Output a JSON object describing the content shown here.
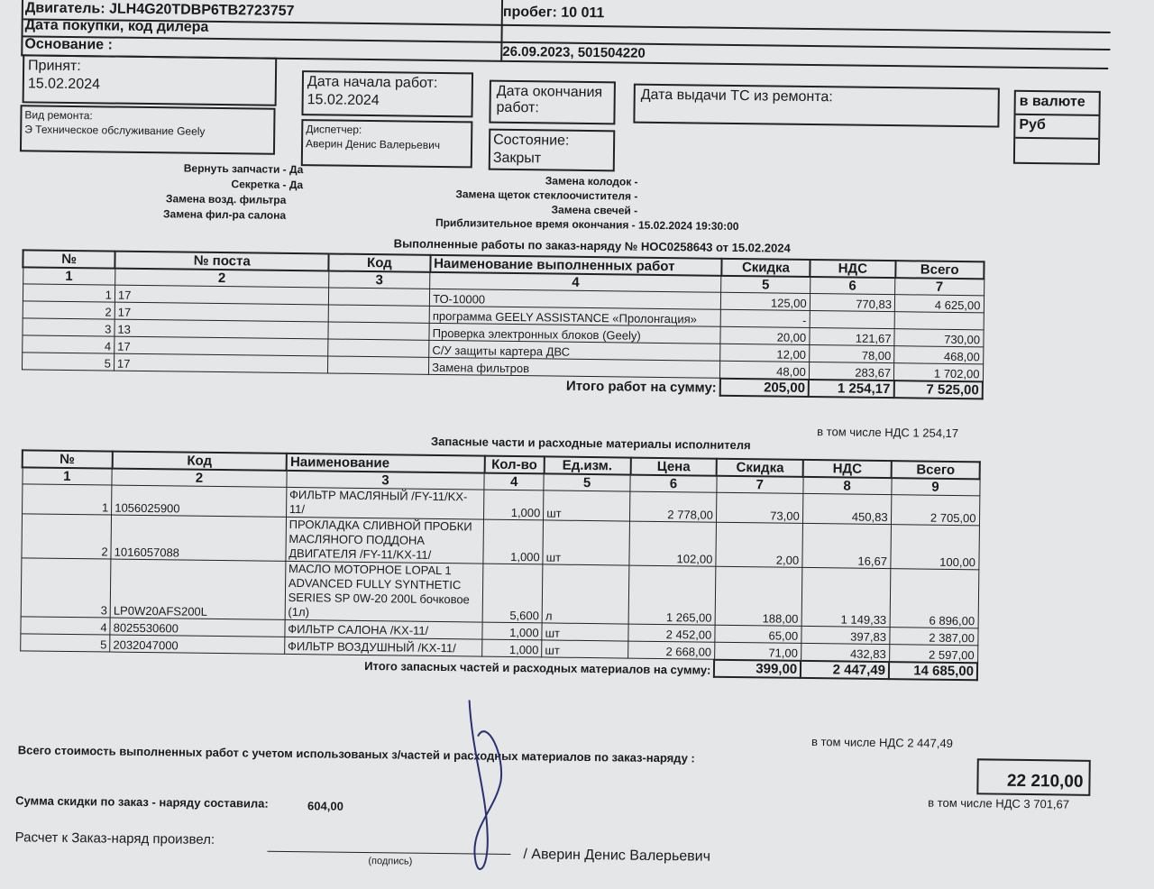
{
  "header": {
    "engine": "Двигатель: JLH4G20TDBP6TB2723757",
    "mileage": "пробег: 10 011",
    "purchase_label": "Дата покупки, код дилера",
    "purchase_value": "26.09.2023, 501504220",
    "basis_label": "Основание :",
    "accepted_label": "Принят:",
    "accepted_value": "15.02.2024",
    "start_label": "Дата начала работ:",
    "start_value": "15.02.2024",
    "end_label": "Дата окончания работ:",
    "issue_label": "Дата выдачи ТС из ремонта:",
    "currency_label": "в валюте",
    "currency_value": "Руб",
    "repair_type_label": "Вид ремонта:",
    "repair_type_value": "Э Техническое обслуживание Geely",
    "dispatcher_label": "Диспетчер:",
    "dispatcher_value": "Аверин Денис Валерьевич",
    "state_label": "Состояние:",
    "state_value": "Закрыт"
  },
  "flags_left": [
    {
      "label": "Вернуть запчасти -",
      "value": "Да"
    },
    {
      "label": "Секретка -",
      "value": "Да"
    },
    {
      "label": "Замена возд. фильтра",
      "value": ""
    },
    {
      "label": "Замена фил-ра салона",
      "value": ""
    }
  ],
  "flags_right": [
    "Замена колодок -",
    "Замена щеток стеклоочистителя -",
    "Замена свечей -",
    "Приблизительное время окончания - 15.02.2024 19:30:00"
  ],
  "works": {
    "title": "Выполненные работы по заказ-наряду №  НОС0258643 от 15.02.2024",
    "headers": [
      "№",
      "№ поста",
      "Код",
      "Наименование выполненных работ",
      "Скидка",
      "НДС",
      "Всего"
    ],
    "col_numbers": [
      "1",
      "2",
      "3",
      "4",
      "5",
      "6",
      "7"
    ],
    "rows": [
      {
        "n": "1",
        "post": "17",
        "code": "",
        "name": "ТО-10000",
        "discount": "125,00",
        "vat": "770,83",
        "total": "4 625,00"
      },
      {
        "n": "2",
        "post": "17",
        "code": "",
        "name": "программа GEELY ASSISTANCE «Пролонгация»",
        "discount": "-",
        "vat": "",
        "total": ""
      },
      {
        "n": "3",
        "post": "13",
        "code": "",
        "name": "Проверка электронных блоков (Geely)",
        "discount": "20,00",
        "vat": "121,67",
        "total": "730,00"
      },
      {
        "n": "4",
        "post": "17",
        "code": "",
        "name": "С/У защиты картера ДВС",
        "discount": "12,00",
        "vat": "78,00",
        "total": "468,00"
      },
      {
        "n": "5",
        "post": "17",
        "code": "",
        "name": "Замена фильтров",
        "discount": "48,00",
        "vat": "283,67",
        "total": "1 702,00"
      }
    ],
    "total_label": "Итого работ на сумму:",
    "total_discount": "205,00",
    "total_vat": "1 254,17",
    "total_sum": "7 525,00",
    "vat_note": "в том числе НДС 1 254,17"
  },
  "parts": {
    "title": "Запасные части и расходные материалы исполнителя",
    "headers": [
      "№",
      "Код",
      "Наименование",
      "Кол-во",
      "Ед.изм.",
      "Цена",
      "Скидка",
      "НДС",
      "Всего"
    ],
    "col_numbers": [
      "1",
      "2",
      "3",
      "4",
      "5",
      "6",
      "7",
      "8",
      "9"
    ],
    "rows": [
      {
        "n": "1",
        "code": "1056025900",
        "name": "ФИЛЬТР МАСЛЯНЫЙ /FY-11/KX-11/",
        "qty": "1,000",
        "unit": "шт",
        "price": "2 778,00",
        "discount": "73,00",
        "vat": "450,83",
        "total": "2 705,00"
      },
      {
        "n": "2",
        "code": "1016057088",
        "name": "ПРОКЛАДКА СЛИВНОЙ ПРОБКИ МАСЛЯНОГО ПОДДОНА ДВИГАТЕЛЯ /FY-11/KX-11/",
        "qty": "1,000",
        "unit": "шт",
        "price": "102,00",
        "discount": "2,00",
        "vat": "16,67",
        "total": "100,00"
      },
      {
        "n": "3",
        "code": "LP0W20AFS200L",
        "name": "МАСЛО МОТОРНОЕ LOPAL 1 ADVANCED FULLY SYNTHETIC SERIES SP 0W-20 200L бочковое (1л)",
        "qty": "5,600",
        "unit": "л",
        "price": "1 265,00",
        "discount": "188,00",
        "vat": "1 149,33",
        "total": "6 896,00"
      },
      {
        "n": "4",
        "code": "8025530600",
        "name": "ФИЛЬТР САЛОНА /KX-11/",
        "qty": "1,000",
        "unit": "шт",
        "price": "2 452,00",
        "discount": "65,00",
        "vat": "397,83",
        "total": "2 387,00"
      },
      {
        "n": "5",
        "code": "2032047000",
        "name": "ФИЛЬТР ВОЗДУШНЫЙ /KX-11/",
        "qty": "1,000",
        "unit": "шт",
        "price": "2 668,00",
        "discount": "71,00",
        "vat": "432,83",
        "total": "2 597,00"
      }
    ],
    "total_label": "Итого запасных частей и расходных материалов на сумму:",
    "total_discount": "399,00",
    "total_vat": "2 447,49",
    "total_sum": "14 685,00",
    "vat_note": "в том числе НДС 2 447,49"
  },
  "summary": {
    "grand_label": "Всего стоимость  выполненных работ  с учетом использованых  з/частей и расходных материалов по заказ-наряду :",
    "grand_value": "22 210,00",
    "grand_vat": "в том числе НДС 3 701,67",
    "discount_label": "Сумма скидки по заказ - наряду составила:",
    "discount_value": "604,00",
    "payment_label": "Расчет  к Заказ-наряд произвел:",
    "signer": "/ Аверин Денис Валерьевич",
    "signature_caption": "(подпись)"
  }
}
